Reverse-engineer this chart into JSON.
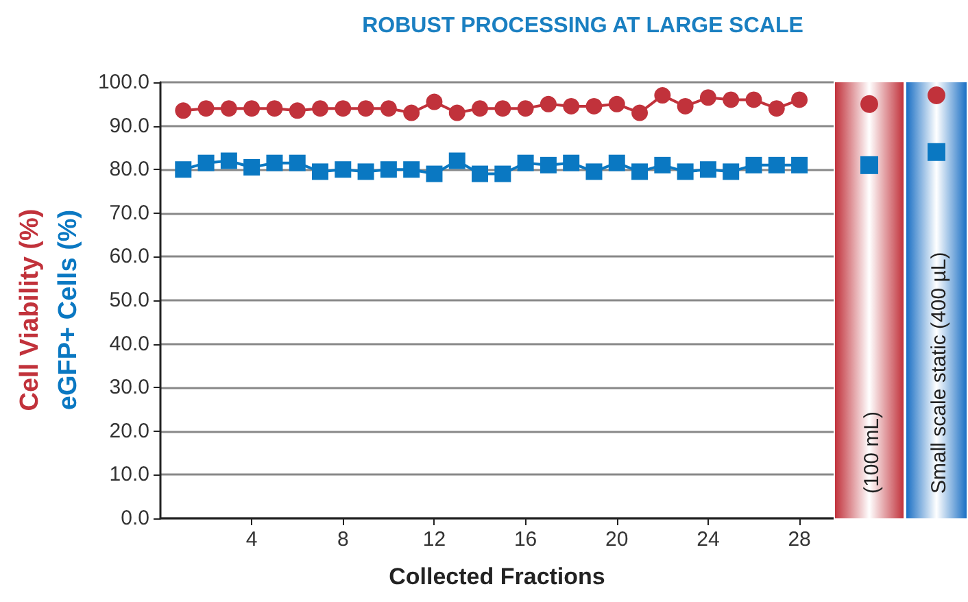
{
  "chart_data": [
    {
      "type": "line",
      "title": "ROBUST PROCESSING AT LARGE SCALE",
      "xlabel": "Collected Fractions",
      "x": [
        1,
        2,
        3,
        4,
        5,
        6,
        7,
        8,
        9,
        10,
        11,
        12,
        13,
        14,
        15,
        16,
        17,
        18,
        19,
        20,
        21,
        22,
        23,
        24,
        25,
        26,
        27,
        28
      ],
      "series": [
        {
          "name": "Cell Viability (%)",
          "color": "#c1323b",
          "marker": "circle",
          "values": [
            93.5,
            94,
            94,
            94,
            94,
            93.5,
            94,
            94,
            94,
            94,
            93,
            95.5,
            93,
            94,
            94,
            94,
            95,
            94.5,
            94.5,
            95,
            93,
            97,
            94.5,
            96.5,
            96,
            96,
            94,
            96
          ]
        },
        {
          "name": "eGFP+ Cells (%)",
          "color": "#0a78c2",
          "marker": "square",
          "values": [
            80,
            81.5,
            82,
            80.5,
            81.5,
            81.5,
            79.5,
            80,
            79.5,
            80,
            80,
            79,
            82,
            79,
            79,
            81.5,
            81,
            81.5,
            79.5,
            81.5,
            79.5,
            81,
            79.5,
            80,
            79.5,
            81,
            81,
            81
          ]
        }
      ],
      "xlim": [
        0,
        29.5
      ],
      "xticks": [
        4,
        8,
        12,
        16,
        20,
        24,
        28
      ],
      "ylim": [
        0,
        100
      ],
      "yticks": [
        {
          "value": 0,
          "label": "0.0"
        },
        {
          "value": 10,
          "label": "10.0"
        },
        {
          "value": 20,
          "label": "20.0"
        },
        {
          "value": 30,
          "label": "30.0"
        },
        {
          "value": 40,
          "label": "40.0"
        },
        {
          "value": 50,
          "label": "50.0"
        },
        {
          "value": 60,
          "label": "60.0"
        },
        {
          "value": 70,
          "label": "70.0"
        },
        {
          "value": 80,
          "label": "80.0"
        },
        {
          "value": 90,
          "label": "90.0"
        },
        {
          "value": 100,
          "label": "100.0"
        }
      ],
      "grid": "y",
      "legend": false
    },
    {
      "type": "scatter",
      "categories": [
        "(100 mL)"
      ],
      "series": [
        {
          "color": "#c1323b",
          "marker": "circle",
          "values": [
            95
          ]
        },
        {
          "color": "#0a78c2",
          "marker": "square",
          "values": [
            81
          ]
        }
      ],
      "ylim": [
        0,
        100
      ],
      "tick_labels": false,
      "bands": [
        {
          "axis": "x",
          "from": "(100 mL)",
          "to": "(100 mL)",
          "color": "#c1323b"
        }
      ]
    },
    {
      "type": "scatter",
      "categories": [
        "Small scale static (400 µL)"
      ],
      "series": [
        {
          "color": "#c1323b",
          "marker": "circle",
          "values": [
            97
          ]
        },
        {
          "color": "#0a78c2",
          "marker": "square",
          "values": [
            84
          ]
        }
      ],
      "ylim": [
        0,
        100
      ],
      "tick_labels": false,
      "bands": [
        {
          "axis": "x",
          "from": "Small scale static (400 µL)",
          "to": "Small scale static (400 µL)",
          "color": "#1a6fc4"
        }
      ]
    }
  ]
}
